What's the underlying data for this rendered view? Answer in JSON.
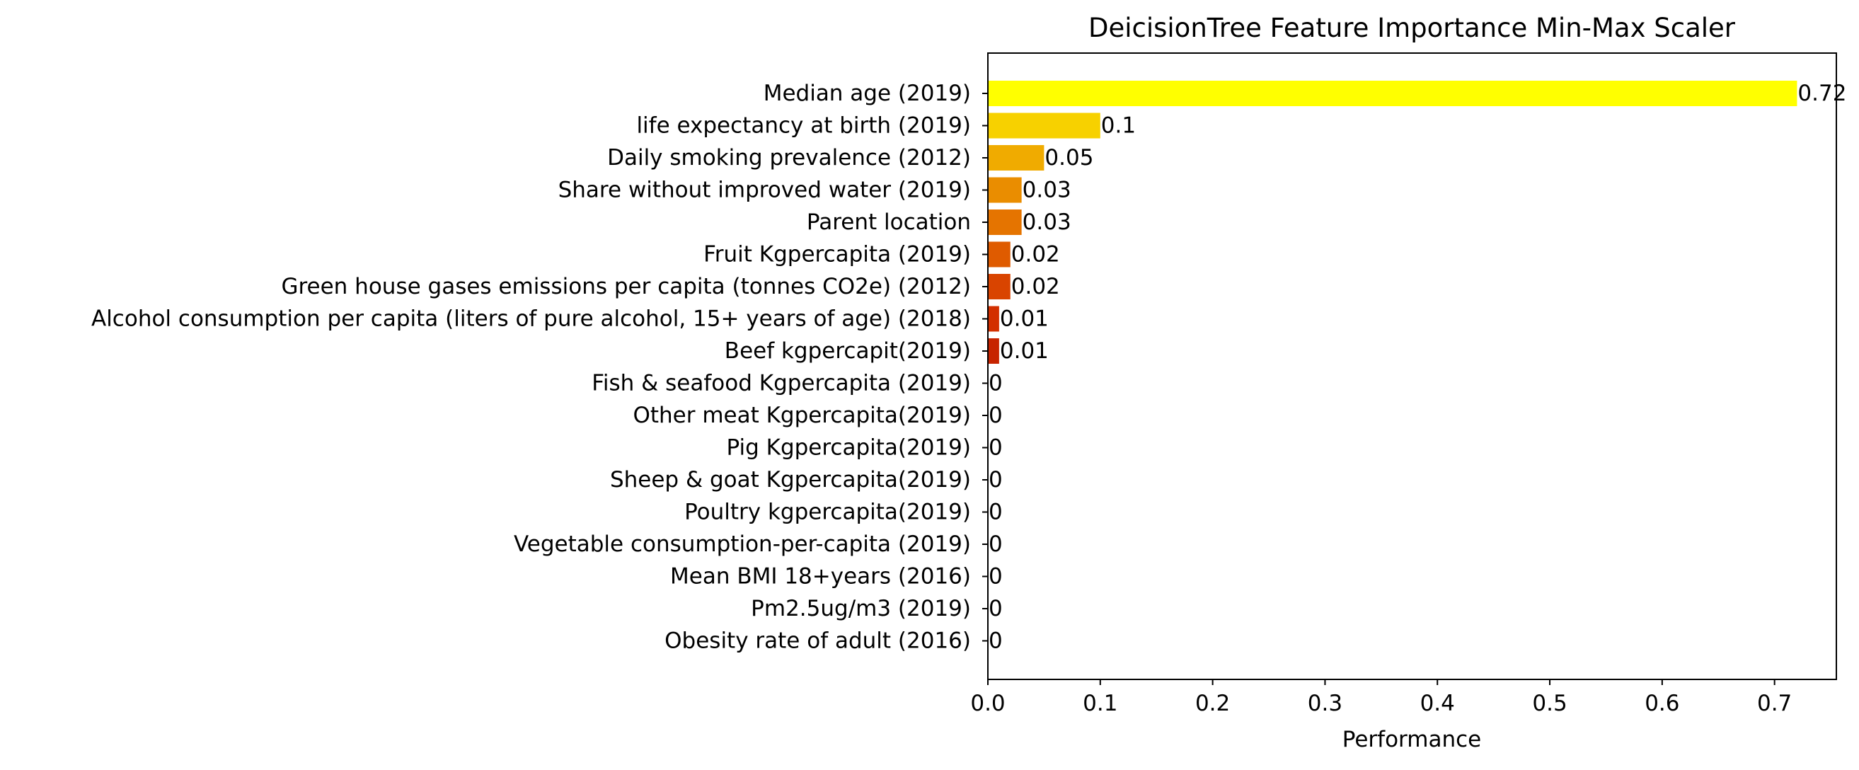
{
  "chart_data": {
    "type": "bar",
    "orientation": "horizontal",
    "title": "DeicisionTree Feature Importance Min-Max Scaler",
    "xlabel": "Performance",
    "ylabel": "",
    "xlim": [
      0,
      0.755
    ],
    "xticks": [
      "0.0",
      "0.1",
      "0.2",
      "0.3",
      "0.4",
      "0.5",
      "0.6",
      "0.7"
    ],
    "grid": false,
    "categories": [
      "Median age (2019)",
      "life expectancy at birth (2019)",
      "Daily smoking prevalence (2012)",
      "Share without improved water (2019)",
      "Parent location",
      "Fruit Kgpercapita (2019)",
      "Green house gases emissions per capita (tonnes CO2e) (2012)",
      "Alcohol consumption per capita (liters of pure alcohol, 15+ years of age) (2018)",
      "Beef kgpercapit(2019)",
      "Fish & seafood Kgpercapita (2019)",
      "Other meat Kgpercapita(2019)",
      "Pig Kgpercapita(2019)",
      "Sheep & goat Kgpercapita(2019)",
      "Poultry kgpercapita(2019)",
      "Vegetable consumption-per-capita (2019)",
      "Mean BMI 18+years (2016)",
      "Pm2.5ug/m3 (2019)",
      "Obesity rate of adult (2016)"
    ],
    "values": [
      0.72,
      0.1,
      0.05,
      0.03,
      0.03,
      0.02,
      0.02,
      0.01,
      0.01,
      0,
      0,
      0,
      0,
      0,
      0,
      0,
      0,
      0
    ],
    "value_labels": [
      "0.72",
      "0.1",
      "0.05",
      "0.03",
      "0.03",
      "0.02",
      "0.02",
      "0.01",
      "0.01",
      "0",
      "0",
      "0",
      "0",
      "0",
      "0",
      "0",
      "0",
      "0"
    ],
    "colors": [
      "#ffff00",
      "#f7d100",
      "#f0ab00",
      "#ea8d00",
      "#e57400",
      "#df5b00",
      "#d94400",
      "#d33000",
      "#c72400",
      "#b91c00",
      "#ab1500",
      "#9e1000",
      "#910b00",
      "#850800",
      "#790500",
      "#6d0300",
      "#620200",
      "#570100"
    ]
  }
}
